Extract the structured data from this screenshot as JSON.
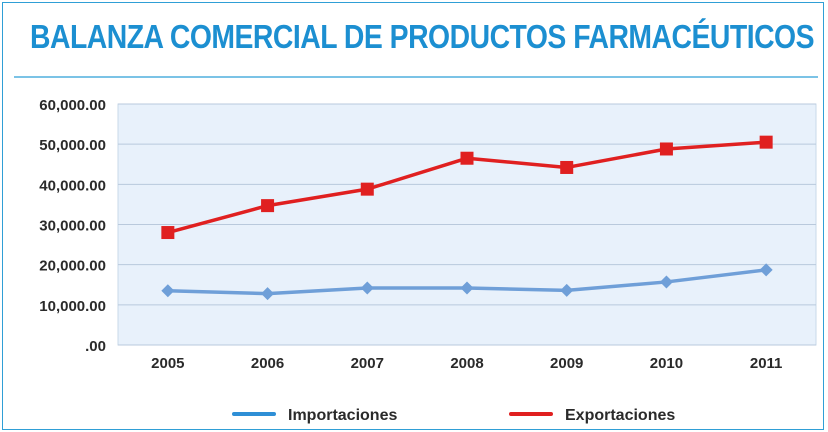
{
  "title": "BALANZA COMERCIAL DE PRODUCTOS FARMACÉUTICOS",
  "colors": {
    "title": "#1c8fd1",
    "imports": "#6f9fd8",
    "exports": "#e02020",
    "legend_imports": "#2e8fd6",
    "plot_bg": "#e8f1fb"
  },
  "chart_data": {
    "type": "line",
    "categories": [
      "2005",
      "2006",
      "2007",
      "2008",
      "2009",
      "2010",
      "2011"
    ],
    "series": [
      {
        "name": "Importaciones",
        "values": [
          13500,
          12800,
          14200,
          14200,
          13600,
          15700,
          18700
        ],
        "color": "#6f9fd8",
        "marker": "diamond"
      },
      {
        "name": "Exportaciones",
        "values": [
          28000,
          34700,
          38800,
          46500,
          44200,
          48800,
          50500
        ],
        "color": "#e02020",
        "marker": "square"
      }
    ],
    "y_ticks": [
      ".00",
      "10,000.00",
      "20,000.00",
      "30,000.00",
      "40,000.00",
      "50,000.00",
      "60,000.00"
    ],
    "ylim": [
      0,
      60000
    ],
    "grid": true,
    "legend_position": "bottom"
  }
}
